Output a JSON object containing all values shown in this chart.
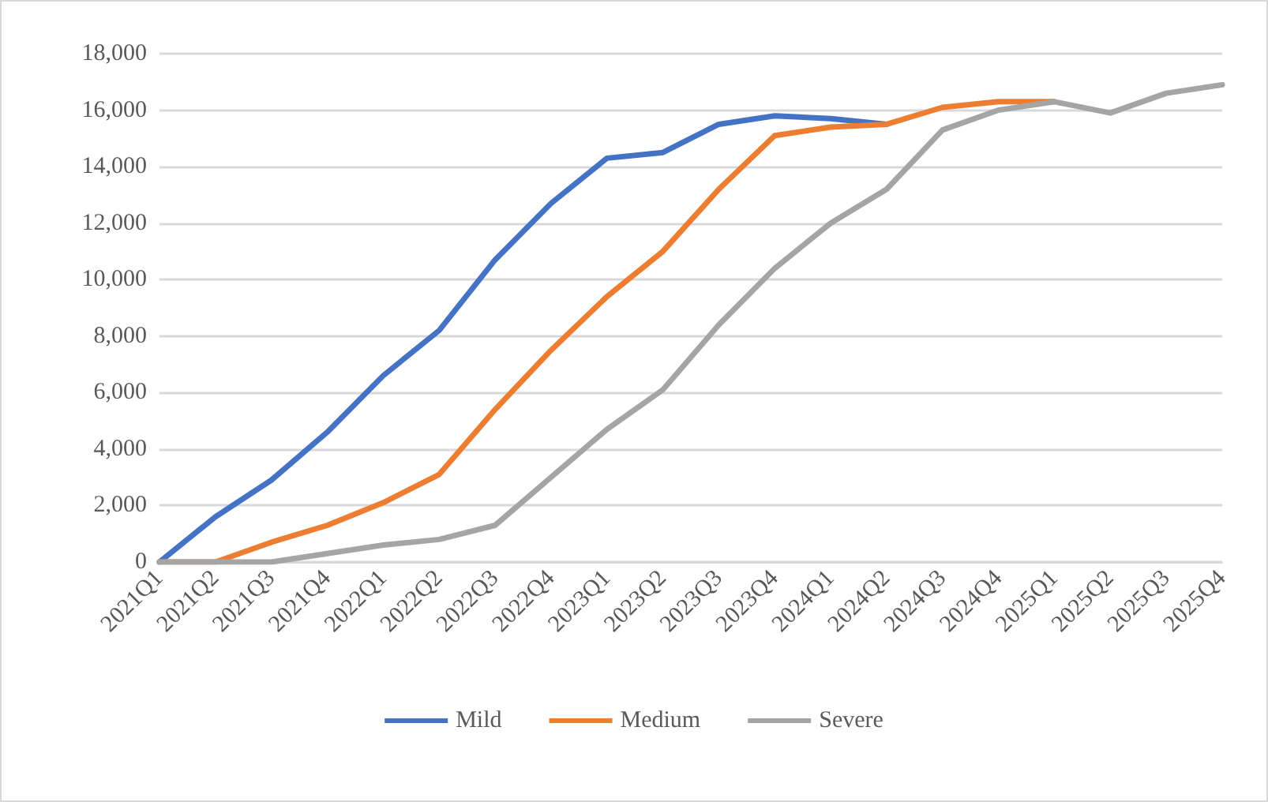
{
  "chart_data": {
    "type": "line",
    "categories": [
      "2021Q1",
      "2021Q2",
      "2021Q3",
      "2021Q4",
      "2022Q1",
      "2022Q2",
      "2022Q3",
      "2022Q4",
      "2023Q1",
      "2023Q2",
      "2023Q3",
      "2023Q4",
      "2024Q1",
      "2024Q2",
      "2024Q3",
      "2024Q4",
      "2025Q1",
      "2025Q2",
      "2025Q3",
      "2025Q4"
    ],
    "series": [
      {
        "name": "Mild",
        "color": "#4472c4",
        "values": [
          0,
          1600,
          2900,
          4600,
          6600,
          8200,
          10700,
          12700,
          14300,
          14500,
          15500,
          15800,
          15700,
          15500,
          null,
          null,
          null,
          null,
          null,
          null
        ]
      },
      {
        "name": "Medium",
        "color": "#ed7d31",
        "values": [
          0,
          0,
          700,
          1300,
          2100,
          3100,
          5400,
          7500,
          9400,
          11000,
          13200,
          15100,
          15400,
          15500,
          16100,
          16300,
          16300,
          null,
          null,
          null
        ]
      },
      {
        "name": "Severe",
        "color": "#a5a5a5",
        "values": [
          0,
          0,
          0,
          300,
          600,
          800,
          1300,
          3000,
          4700,
          6100,
          8400,
          10400,
          12000,
          13200,
          15300,
          16000,
          16300,
          15900,
          16600,
          16900
        ]
      }
    ],
    "ylim": [
      0,
      18000
    ],
    "yticks": [
      0,
      {
        "value": 2000,
        "label": "2,000"
      },
      {
        "value": 4000,
        "label": "4,000"
      },
      {
        "value": 6000,
        "label": "6,000"
      },
      {
        "value": 8000,
        "label": "8,000"
      },
      {
        "value": 10000,
        "label": "10,000"
      },
      {
        "value": 12000,
        "label": "12,000"
      },
      {
        "value": 14000,
        "label": "14,000"
      },
      {
        "value": 16000,
        "label": "16,000"
      },
      {
        "value": 18000,
        "label": "18,000"
      }
    ],
    "grid": "y",
    "legend": "bottom",
    "marker": "none",
    "line_style": "solid"
  }
}
